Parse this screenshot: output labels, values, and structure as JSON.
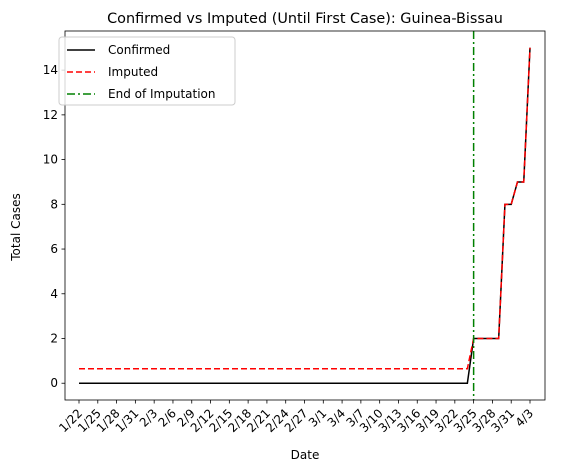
{
  "chart_data": {
    "type": "line",
    "title": "Confirmed vs Imputed (Until First Case): Guinea-Bissau",
    "xlabel": "Date",
    "ylabel": "Total Cases",
    "x_tick_labels": [
      "1/22",
      "1/25",
      "1/28",
      "1/31",
      "2/3",
      "2/6",
      "2/9",
      "2/12",
      "2/15",
      "2/18",
      "2/21",
      "2/24",
      "2/27",
      "3/1",
      "3/4",
      "3/7",
      "3/10",
      "3/13",
      "3/16",
      "3/19",
      "3/22",
      "3/25",
      "3/28",
      "3/31",
      "4/3"
    ],
    "y_ticks": [
      0,
      2,
      4,
      6,
      8,
      10,
      12,
      14
    ],
    "ylim": [
      -0.75,
      15.75
    ],
    "grid": false,
    "legend_position": "top-left",
    "series": [
      {
        "name": "Confirmed",
        "color": "#000000",
        "style": "solid",
        "points": [
          [
            "1/22",
            0
          ],
          [
            "3/24",
            0
          ],
          [
            "3/25",
            2
          ],
          [
            "3/26",
            2
          ],
          [
            "3/27",
            2
          ],
          [
            "3/28",
            2
          ],
          [
            "3/29",
            2
          ],
          [
            "3/30",
            8
          ],
          [
            "3/31",
            8
          ],
          [
            "4/1",
            9
          ],
          [
            "4/2",
            9
          ],
          [
            "4/3",
            15
          ]
        ]
      },
      {
        "name": "Imputed",
        "color": "#ff0000",
        "style": "dashed",
        "points": [
          [
            "1/22",
            0.65
          ],
          [
            "3/24",
            0.65
          ],
          [
            "3/25",
            2
          ],
          [
            "3/26",
            2
          ],
          [
            "3/27",
            2
          ],
          [
            "3/28",
            2
          ],
          [
            "3/29",
            2
          ],
          [
            "3/30",
            8
          ],
          [
            "3/31",
            8
          ],
          [
            "4/1",
            9
          ],
          [
            "4/2",
            9
          ],
          [
            "4/3",
            15
          ]
        ]
      }
    ],
    "vline": {
      "name": "End of Imputation",
      "x": "3/25",
      "color": "#008000",
      "style": "dashdot"
    }
  }
}
